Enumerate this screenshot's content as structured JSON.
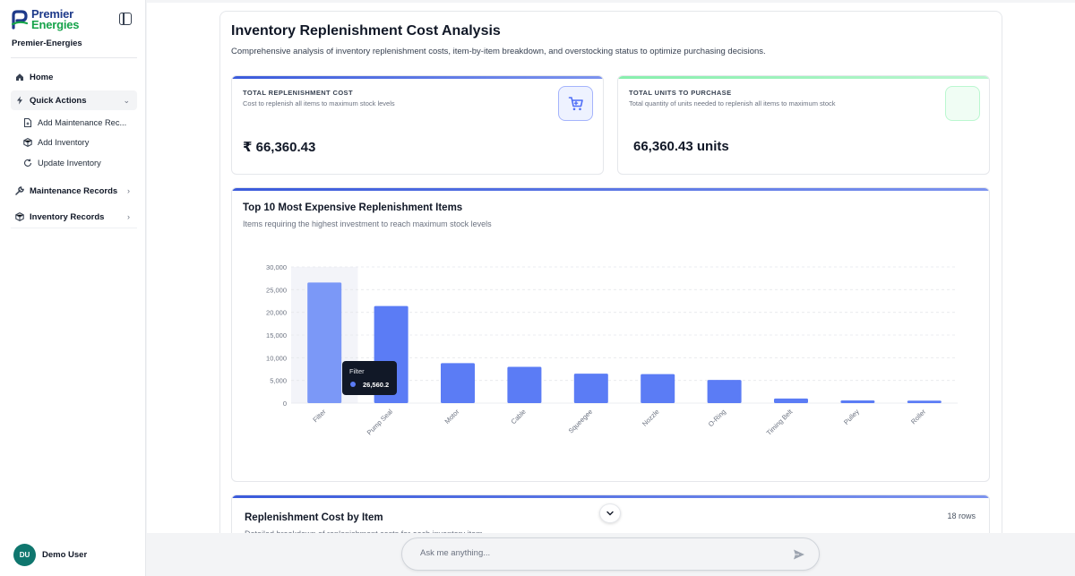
{
  "sidebar": {
    "logo_line1": "Premier",
    "logo_line2": "Energies",
    "org_name": "Premier-Energies",
    "items": [
      {
        "label": "Home",
        "icon": "home-icon"
      },
      {
        "label": "Quick Actions",
        "icon": "lightning-icon"
      },
      {
        "label": "Maintenance Records",
        "icon": "wrench-icon"
      },
      {
        "label": "Inventory Records",
        "icon": "box-icon"
      }
    ],
    "quick_actions": [
      {
        "label": "Add Maintenance Rec...",
        "icon": "file-plus-icon"
      },
      {
        "label": "Add Inventory",
        "icon": "package-plus-icon"
      },
      {
        "label": "Update Inventory",
        "icon": "refresh-icon"
      }
    ],
    "user": {
      "initials": "DU",
      "name": "Demo User",
      "avatar_color": "#0f766e"
    }
  },
  "page": {
    "title": "Inventory Replenishment Cost Analysis",
    "subtitle": "Comprehensive analysis of inventory replenishment costs, item-by-item breakdown, and overstocking status to optimize purchasing decisions."
  },
  "kpis": {
    "cost": {
      "label": "TOTAL REPLENISHMENT COST",
      "description": "Cost to replenish all items to maximum stock levels",
      "value": "₹ 66,360.43",
      "icon": "shopping-cart-icon"
    },
    "units": {
      "label": "TOTAL UNITS TO PURCHASE",
      "description": "Total quantity of units needed to replenish all items to maximum stock",
      "value": "66,360.43  units"
    }
  },
  "chart_section": {
    "title": "Top 10 Most Expensive Replenishment Items",
    "subtitle": "Items requiring the highest investment to reach maximum stock levels"
  },
  "chart_data": {
    "type": "bar",
    "categories": [
      "Filter",
      "Pump Seal",
      "Motor",
      "Cable",
      "Squeegee",
      "Nozzle",
      "O-Ring",
      "Timing Belt",
      "Pulley",
      "Roller"
    ],
    "values": [
      26560.2,
      21400,
      8800,
      8000,
      6500,
      6400,
      5100,
      1000,
      600,
      550
    ],
    "ylim": [
      0,
      30000
    ],
    "yticks": [
      "0",
      "5,000",
      "10,000",
      "15,000",
      "20,000",
      "25,000",
      "30,000"
    ],
    "bar_color": "#5b7cf5",
    "hover_bar_color": "#7b98f7",
    "grid": true,
    "tooltip": {
      "category": "Filter",
      "value": "26,560.2",
      "index": 0
    }
  },
  "table_section": {
    "title": "Replenishment Cost by Item",
    "subtitle": "Detailed breakdown of replenishment costs for each inventory item",
    "row_count": "18 rows"
  },
  "chat": {
    "placeholder": "Ask me anything..."
  }
}
